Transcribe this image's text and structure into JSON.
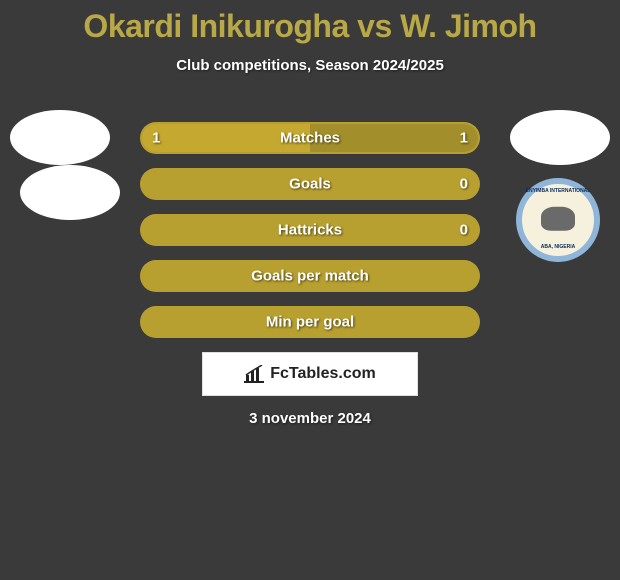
{
  "title": "Okardi Inikurogha vs W. Jimoh",
  "subtitle": "Club competitions, Season 2024/2025",
  "date": "3 november 2024",
  "logo_text": "FcTables.com",
  "badge": {
    "top_text": "ENYIMBA INTERNATIONAL",
    "bottom_text": "ABA, NIGERIA",
    "border_color": "#8fb5d8",
    "fill_color": "#f5f1dc"
  },
  "colors": {
    "background": "#3a3a3a",
    "title_color": "#b8a847",
    "bar_left_color": "#c4a82f",
    "bar_right_color": "#a28e2a",
    "bar_full_color": "#b8a030",
    "bar_outline": "#b8a030",
    "text": "#ffffff"
  },
  "bars": [
    {
      "label": "Matches",
      "left_val": "1",
      "right_val": "1",
      "left_pct": 50,
      "right_pct": 50,
      "shows_values": true
    },
    {
      "label": "Goals",
      "left_val": "",
      "right_val": "0",
      "left_pct": 100,
      "right_pct": 0,
      "shows_values": true
    },
    {
      "label": "Hattricks",
      "left_val": "",
      "right_val": "0",
      "left_pct": 100,
      "right_pct": 0,
      "shows_values": true
    },
    {
      "label": "Goals per match",
      "left_val": "",
      "right_val": "",
      "left_pct": 100,
      "right_pct": 0,
      "shows_values": false
    },
    {
      "label": "Min per goal",
      "left_val": "",
      "right_val": "",
      "left_pct": 100,
      "right_pct": 0,
      "shows_values": false
    }
  ]
}
